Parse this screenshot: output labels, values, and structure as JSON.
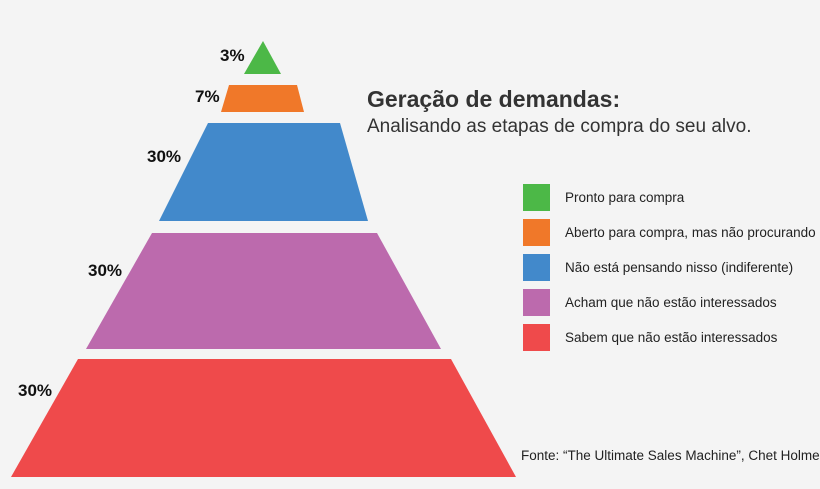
{
  "chart_data": {
    "type": "pyramid",
    "title": "Geração de demandas:",
    "subtitle": "Analisando as etapas de compra do seu alvo.",
    "source": "Fonte: “The Ultimate Sales Machine”, Chet Holmes",
    "segments": [
      {
        "label": "Pronto para compra",
        "value": 3,
        "value_label": "3%",
        "color": "#4cb847"
      },
      {
        "label": "Aberto para compra, mas não procurando",
        "value": 7,
        "value_label": "7%",
        "color": "#f07829"
      },
      {
        "label": "Não está pensando nisso (indiferente)",
        "value": 30,
        "value_label": "30%",
        "color": "#4289cb"
      },
      {
        "label": "Acham que não estão interessados",
        "value": 30,
        "value_label": "30%",
        "color": "#bc6aad"
      },
      {
        "label": "Sabem que não estão interessados",
        "value": 30,
        "value_label": "30%",
        "color": "#ef4a4b"
      }
    ]
  }
}
